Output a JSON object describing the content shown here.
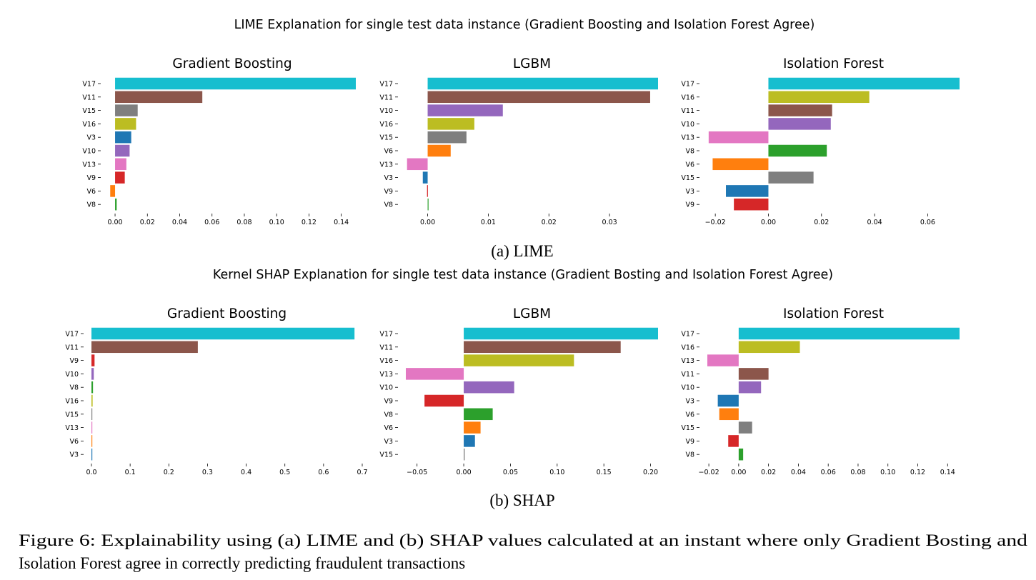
{
  "figure": {
    "panel_a_suptitle": "LIME Explanation for single test data instance (Gradient Boosting and Isolation Forest Agree)",
    "panel_a_caption": "(a) LIME",
    "panel_b_suptitle": "Kernel SHAP Explanation for single test data instance (Gradient Bosting and Isolation Forest Agree)",
    "panel_b_caption": "(b) SHAP",
    "caption_line1": "Figure 6: Explainability using (a) LIME and (b) SHAP values calculated at an instant where only Gradient Bosting and",
    "caption_line2": "Isolation Forest agree in correctly predicting fraudulent transactions"
  },
  "chart_data": [
    {
      "type": "bar",
      "orientation": "horizontal",
      "panel": "a",
      "title": "Gradient Boosting",
      "categories": [
        "V17",
        "V11",
        "V15",
        "V16",
        "V3",
        "V10",
        "V13",
        "V9",
        "V6",
        "V8"
      ],
      "values": [
        0.149,
        0.054,
        0.014,
        0.013,
        0.01,
        0.009,
        0.007,
        0.006,
        -0.003,
        0.001
      ],
      "colors": [
        "#17becf",
        "#8c564b",
        "#7f7f7f",
        "#bcbd22",
        "#1f77b4",
        "#9467bd",
        "#e377c2",
        "#d62728",
        "#ff7f0e",
        "#2ca02c"
      ],
      "xlim": [
        -0.004,
        0.149
      ],
      "xticks": [
        0.0,
        0.02,
        0.04,
        0.06,
        0.08,
        0.1,
        0.12,
        0.14
      ],
      "xtick_labels": [
        "0.00",
        "0.02",
        "0.04",
        "0.06",
        "0.08",
        "0.10",
        "0.12",
        "0.14"
      ]
    },
    {
      "type": "bar",
      "orientation": "horizontal",
      "panel": "a",
      "title": "LGBM",
      "categories": [
        "V17",
        "V11",
        "V10",
        "V16",
        "V15",
        "V6",
        "V13",
        "V3",
        "V9",
        "V8"
      ],
      "values": [
        0.038,
        0.0367,
        0.0124,
        0.0077,
        0.0064,
        0.0038,
        -0.0034,
        -0.0008,
        -0.0001,
        0.0001
      ],
      "colors": [
        "#17becf",
        "#8c564b",
        "#9467bd",
        "#bcbd22",
        "#7f7f7f",
        "#ff7f0e",
        "#e377c2",
        "#1f77b4",
        "#d62728",
        "#2ca02c"
      ],
      "xlim": [
        -0.0036,
        0.038
      ],
      "xticks": [
        0.0,
        0.01,
        0.02,
        0.03
      ],
      "xtick_labels": [
        "0.00",
        "0.01",
        "0.02",
        "0.03"
      ]
    },
    {
      "type": "bar",
      "orientation": "horizontal",
      "panel": "a",
      "title": "Isolation Forest",
      "categories": [
        "V17",
        "V16",
        "V11",
        "V10",
        "V13",
        "V8",
        "V6",
        "V15",
        "V3",
        "V9"
      ],
      "values": [
        0.072,
        0.038,
        0.024,
        0.0235,
        -0.0225,
        0.022,
        -0.021,
        0.017,
        -0.016,
        -0.013
      ],
      "colors": [
        "#17becf",
        "#bcbd22",
        "#8c564b",
        "#9467bd",
        "#e377c2",
        "#2ca02c",
        "#ff7f0e",
        "#7f7f7f",
        "#1f77b4",
        "#d62728"
      ],
      "xlim": [
        -0.023,
        0.072
      ],
      "xticks": [
        -0.02,
        0.0,
        0.02,
        0.04,
        0.06
      ],
      "xtick_labels": [
        "−0.02",
        "0.00",
        "0.02",
        "0.04",
        "0.06"
      ]
    },
    {
      "type": "bar",
      "orientation": "horizontal",
      "panel": "b",
      "title": "Gradient Boosting",
      "categories": [
        "V17",
        "V11",
        "V9",
        "V10",
        "V8",
        "V16",
        "V15",
        "V13",
        "V6",
        "V3"
      ],
      "values": [
        0.68,
        0.275,
        0.008,
        0.006,
        0.004,
        0.003,
        0.002,
        0.002,
        0.002,
        0.002
      ],
      "colors": [
        "#17becf",
        "#8c564b",
        "#d62728",
        "#9467bd",
        "#2ca02c",
        "#bcbd22",
        "#7f7f7f",
        "#e377c2",
        "#ff7f0e",
        "#1f77b4"
      ],
      "xlim": [
        0.0,
        0.7
      ],
      "xticks": [
        0.0,
        0.1,
        0.2,
        0.3,
        0.4,
        0.5,
        0.6,
        0.7
      ],
      "xtick_labels": [
        "0.0",
        "0.1",
        "0.2",
        "0.3",
        "0.4",
        "0.5",
        "0.6",
        "0.7"
      ]
    },
    {
      "type": "bar",
      "orientation": "horizontal",
      "panel": "b",
      "title": "LGBM",
      "categories": [
        "V17",
        "V11",
        "V16",
        "V13",
        "V10",
        "V9",
        "V8",
        "V6",
        "V3",
        "V15"
      ],
      "values": [
        0.208,
        0.168,
        0.118,
        -0.062,
        0.054,
        -0.042,
        0.031,
        0.018,
        0.012,
        0.001
      ],
      "colors": [
        "#17becf",
        "#8c564b",
        "#bcbd22",
        "#e377c2",
        "#9467bd",
        "#d62728",
        "#2ca02c",
        "#ff7f0e",
        "#1f77b4",
        "#7f7f7f"
      ],
      "xlim": [
        -0.062,
        0.208
      ],
      "xticks": [
        -0.05,
        0.0,
        0.05,
        0.1,
        0.15,
        0.2
      ],
      "xtick_labels": [
        "−0.05",
        "0.00",
        "0.05",
        "0.10",
        "0.15",
        "0.20"
      ]
    },
    {
      "type": "bar",
      "orientation": "horizontal",
      "panel": "b",
      "title": "Isolation Forest",
      "categories": [
        "V17",
        "V16",
        "V13",
        "V11",
        "V10",
        "V3",
        "V6",
        "V15",
        "V9",
        "V8"
      ],
      "values": [
        0.148,
        0.041,
        -0.021,
        0.02,
        0.015,
        -0.014,
        -0.013,
        0.009,
        -0.007,
        0.003
      ],
      "colors": [
        "#17becf",
        "#bcbd22",
        "#e377c2",
        "#8c564b",
        "#9467bd",
        "#1f77b4",
        "#ff7f0e",
        "#7f7f7f",
        "#d62728",
        "#2ca02c"
      ],
      "xlim": [
        -0.021,
        0.148
      ],
      "xticks": [
        -0.02,
        0.0,
        0.02,
        0.04,
        0.06,
        0.08,
        0.1,
        0.12,
        0.14
      ],
      "xtick_labels": [
        "−0.02",
        "0.00",
        "0.02",
        "0.04",
        "0.06",
        "0.08",
        "0.10",
        "0.12",
        "0.14"
      ]
    }
  ]
}
